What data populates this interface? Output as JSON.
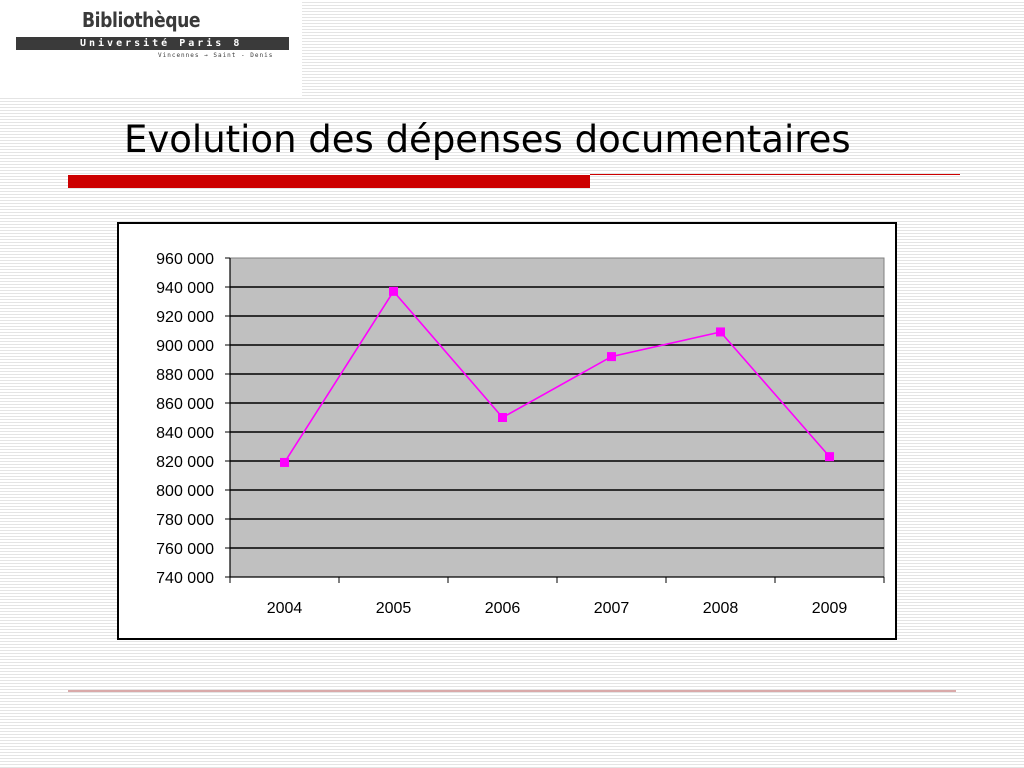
{
  "logo": {
    "name": "Bibliothèque",
    "university": "Université Paris 8",
    "location": "Vincennes → Saint - Denis"
  },
  "slide": {
    "title": "Evolution des dépenses documentaires"
  },
  "colors": {
    "accent_red": "#cc0000",
    "series_line": "#ff00ff",
    "plot_background": "#c0c0c0"
  },
  "chart_data": {
    "type": "line",
    "title": "",
    "xlabel": "",
    "ylabel": "",
    "categories": [
      "2004",
      "2005",
      "2006",
      "2007",
      "2008",
      "2009"
    ],
    "series": [
      {
        "values": [
          819000,
          937000,
          850000,
          892000,
          909000,
          823000
        ]
      }
    ],
    "ylim": [
      740000,
      960000
    ],
    "ytick_step": 20000,
    "ytick_labels": [
      "740 000",
      "760 000",
      "780 000",
      "800 000",
      "820 000",
      "840 000",
      "860 000",
      "880 000",
      "900 000",
      "920 000",
      "940 000",
      "960 000"
    ],
    "grid": true,
    "legend": "none",
    "marker": "square"
  }
}
